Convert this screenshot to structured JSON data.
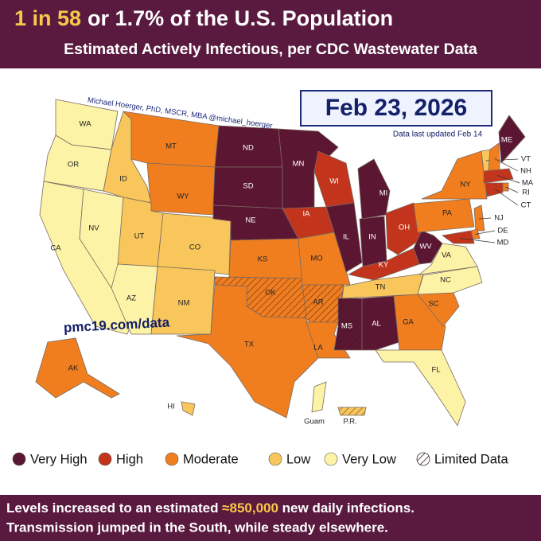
{
  "header": {
    "title_highlight": "1 in 58",
    "title_rest": "or 1.7% of the U.S. Population",
    "subtitle": "Estimated Actively Infectious, per CDC Wastewater Data"
  },
  "date": "Feb 23, 2026",
  "updated": "Data last updated Feb 14",
  "credit": "Michael Hoerger, PhD, MSCR, MBA  @michael_hoerger",
  "website": "pmc19.com/data",
  "legend": [
    {
      "name": "Very High",
      "color": "#5b1632"
    },
    {
      "name": "High",
      "color": "#c2341b"
    },
    {
      "name": "Moderate",
      "color": "#f07e1f"
    },
    {
      "name": "Low",
      "color": "#f8c65b"
    },
    {
      "name": "Very Low",
      "color": "#fdf3a6"
    }
  ],
  "limited_label": "Limited Data",
  "states": [
    {
      "label": "WA",
      "level": "Very Low"
    },
    {
      "label": "OR",
      "level": "Very Low"
    },
    {
      "label": "CA",
      "level": "Very Low"
    },
    {
      "label": "NV",
      "level": "Very Low"
    },
    {
      "label": "ID",
      "level": "Low"
    },
    {
      "label": "MT",
      "level": "Moderate"
    },
    {
      "label": "WY",
      "level": "Moderate"
    },
    {
      "label": "UT",
      "level": "Low"
    },
    {
      "label": "CO",
      "level": "Low"
    },
    {
      "label": "AZ",
      "level": "Very Low"
    },
    {
      "label": "NM",
      "level": "Low"
    },
    {
      "label": "ND",
      "level": "Very High"
    },
    {
      "label": "SD",
      "level": "Very High"
    },
    {
      "label": "NE",
      "level": "Very High"
    },
    {
      "label": "KS",
      "level": "Moderate"
    },
    {
      "label": "OK",
      "level": "Moderate",
      "limited": true
    },
    {
      "label": "TX",
      "level": "Moderate"
    },
    {
      "label": "MN",
      "level": "Very High"
    },
    {
      "label": "IA",
      "level": "High"
    },
    {
      "label": "MO",
      "level": "Moderate"
    },
    {
      "label": "AR",
      "level": "Moderate",
      "limited": true
    },
    {
      "label": "LA",
      "level": "Moderate"
    },
    {
      "label": "WI",
      "level": "High"
    },
    {
      "label": "IL",
      "level": "Very High"
    },
    {
      "label": "MI",
      "level": "Very High"
    },
    {
      "label": "IN",
      "level": "Very High"
    },
    {
      "label": "OH",
      "level": "High"
    },
    {
      "label": "KY",
      "level": "High"
    },
    {
      "label": "TN",
      "level": "Low"
    },
    {
      "label": "MS",
      "level": "Very High",
      "limited": true
    },
    {
      "label": "AL",
      "level": "Very High"
    },
    {
      "label": "GA",
      "level": "Moderate"
    },
    {
      "label": "FL",
      "level": "Very Low"
    },
    {
      "label": "SC",
      "level": "Moderate"
    },
    {
      "label": "NC",
      "level": "Very Low"
    },
    {
      "label": "VA",
      "level": "Very Low"
    },
    {
      "label": "WV",
      "level": "Very High"
    },
    {
      "label": "PA",
      "level": "Moderate"
    },
    {
      "label": "NY",
      "level": "Moderate"
    },
    {
      "label": "VT",
      "level": "Low"
    },
    {
      "label": "NH",
      "level": "Moderate"
    },
    {
      "label": "ME",
      "level": "Very High"
    },
    {
      "label": "MA",
      "level": "High"
    },
    {
      "label": "RI",
      "level": "Moderate"
    },
    {
      "label": "CT",
      "level": "High"
    },
    {
      "label": "NJ",
      "level": "Moderate"
    },
    {
      "label": "DE",
      "level": "Moderate"
    },
    {
      "label": "MD",
      "level": "High"
    },
    {
      "label": "AK",
      "level": "Moderate"
    },
    {
      "label": "HI",
      "level": "Low"
    },
    {
      "label": "Guam",
      "level": "Very Low"
    },
    {
      "label": "P.R.",
      "level": "Low",
      "limited": true
    }
  ],
  "footer": {
    "line1_start": "Levels increased to an estimated ",
    "line1_highlight": "≈850,000",
    "line1_end": " new daily infections.",
    "line2": "Transmission jumped in the South, while steady elsewhere."
  }
}
